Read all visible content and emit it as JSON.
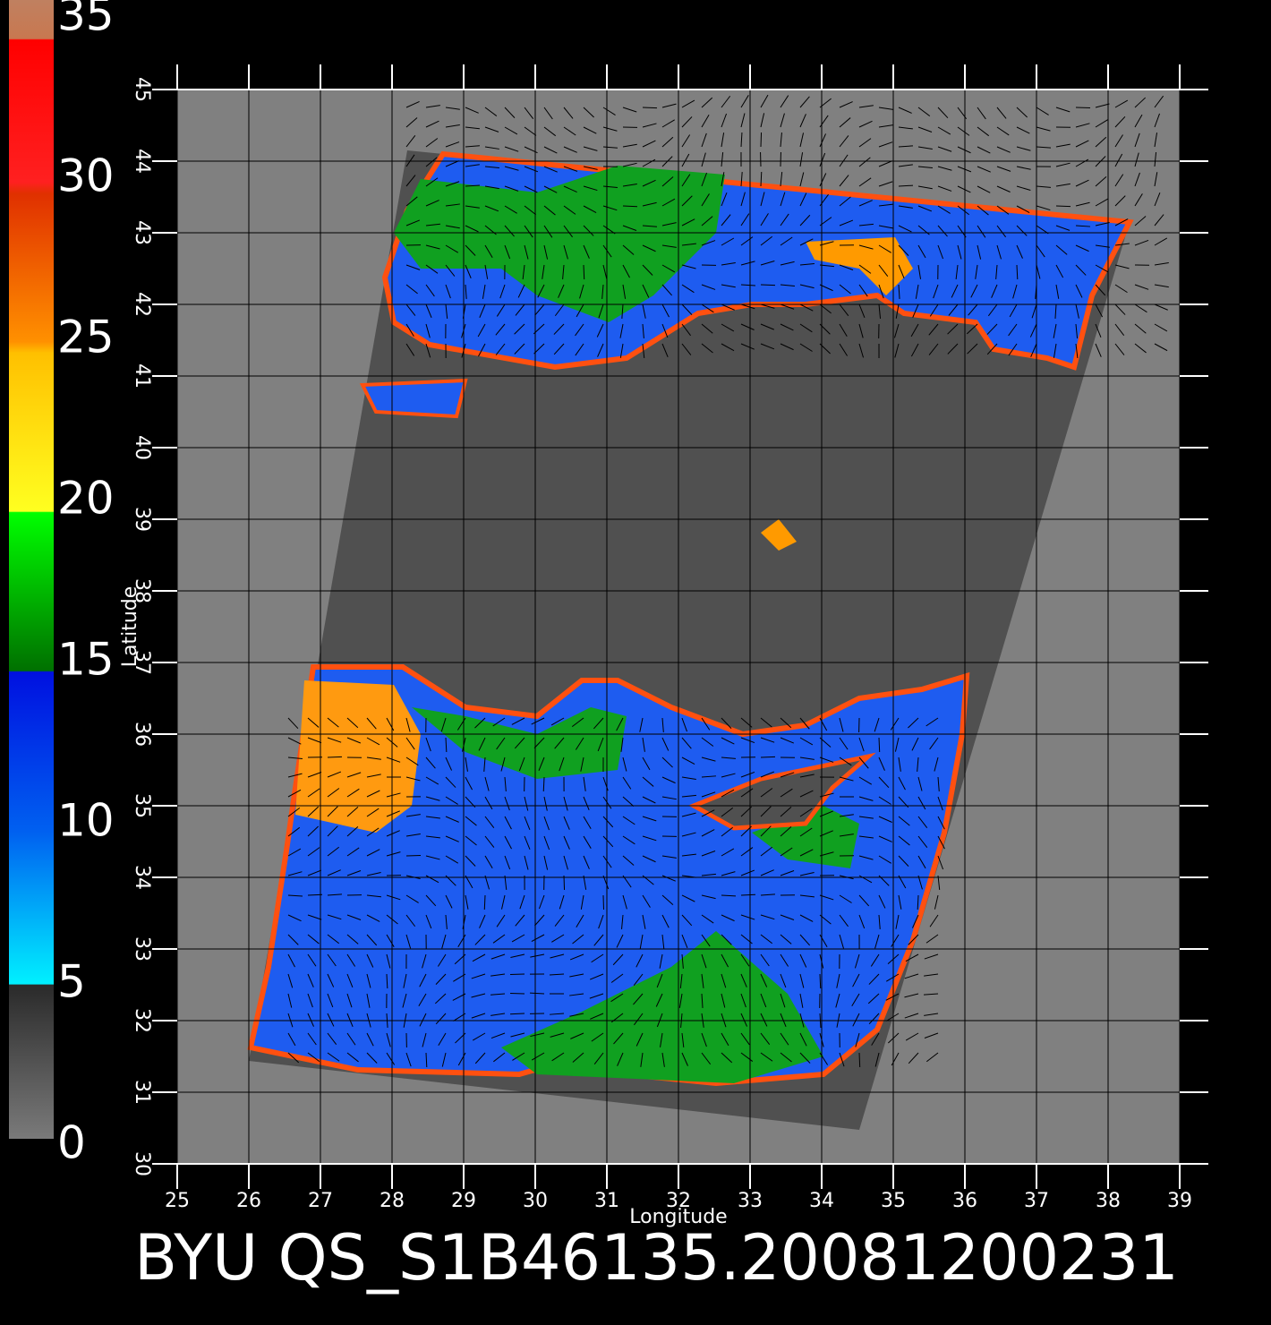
{
  "chart_data": {
    "type": "map",
    "title": "BYU  QS_S1B46135.20081200231",
    "xlabel": "Longitude",
    "ylabel": "Latitude",
    "xlim": [
      25,
      39
    ],
    "xticks": [
      25,
      26,
      27,
      28,
      29,
      30,
      31,
      32,
      33,
      34,
      35,
      36,
      37,
      38,
      39
    ],
    "ylim": [
      30,
      45
    ],
    "yticks": [
      30,
      31,
      32,
      33,
      34,
      35,
      36,
      37,
      38,
      39,
      40,
      41,
      42,
      43,
      44,
      45
    ],
    "grid": true,
    "colorbar": {
      "lim": [
        0,
        35
      ],
      "ticks": [
        0,
        5,
        10,
        15,
        20,
        25,
        30,
        35
      ]
    }
  }
}
